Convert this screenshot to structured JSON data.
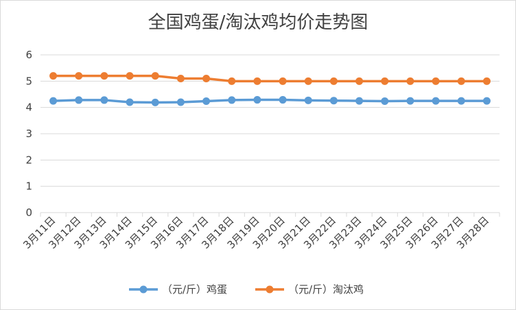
{
  "chart_data": {
    "type": "line",
    "title": "全国鸡蛋/淘汰鸡均价走势图",
    "categories": [
      "3月11日",
      "3月12日",
      "3月13日",
      "3月14日",
      "3月15日",
      "3月16日",
      "3月17日",
      "3月18日",
      "3月19日",
      "3月20日",
      "3月21日",
      "3月22日",
      "3月23日",
      "3月24日",
      "3月25日",
      "3月26日",
      "3月27日",
      "3月28日"
    ],
    "series": [
      {
        "name": "（元/斤）鸡蛋",
        "color": "#5b9bd5",
        "values": [
          4.25,
          4.28,
          4.28,
          4.2,
          4.19,
          4.2,
          4.24,
          4.28,
          4.29,
          4.29,
          4.27,
          4.26,
          4.25,
          4.24,
          4.25,
          4.25,
          4.25,
          4.25
        ]
      },
      {
        "name": "（元/斤）淘汰鸡",
        "color": "#ed7d31",
        "values": [
          5.2,
          5.2,
          5.2,
          5.2,
          5.2,
          5.1,
          5.1,
          5.0,
          5.0,
          5.0,
          5.0,
          5.0,
          5.0,
          5.0,
          5.0,
          5.0,
          5.0,
          5.0
        ]
      }
    ],
    "yticks": [
      "0",
      "1",
      "2",
      "3",
      "4",
      "5",
      "6"
    ],
    "ylim": [
      0,
      6
    ],
    "grid": true,
    "legend": "bottom"
  }
}
